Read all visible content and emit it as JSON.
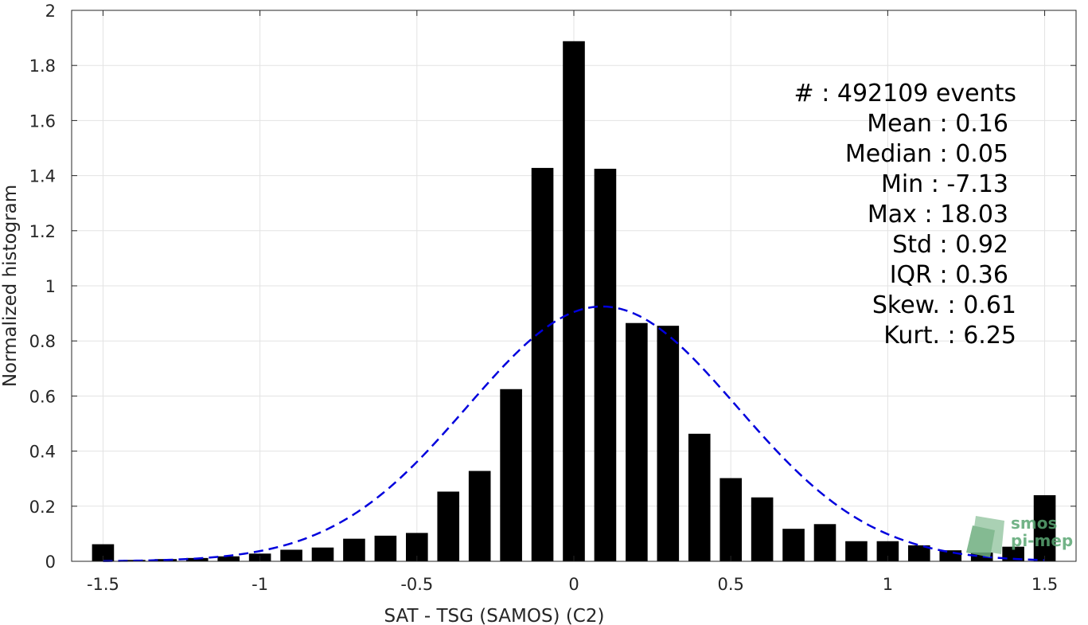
{
  "chart_data": {
    "type": "bar",
    "xlabel": "SAT - TSG (SAMOS) (C2)",
    "ylabel": "Normalized histogram",
    "xlim": [
      -1.6,
      1.6
    ],
    "ylim": [
      0,
      2
    ],
    "xticks": [
      "-1.5",
      "-1",
      "-0.5",
      "0",
      "0.5",
      "1",
      "1.5"
    ],
    "xtick_values": [
      -1.5,
      -1,
      -0.5,
      0,
      0.5,
      1,
      1.5
    ],
    "yticks": [
      "0",
      "0.2",
      "0.4",
      "0.6",
      "0.8",
      "1",
      "1.2",
      "1.4",
      "1.6",
      "1.8",
      "2"
    ],
    "ytick_values": [
      0,
      0.2,
      0.4,
      0.6,
      0.8,
      1,
      1.2,
      1.4,
      1.6,
      1.8,
      2
    ],
    "grid": true,
    "bar_color": "#000000",
    "bar_width": 0.07,
    "x": [
      -1.5,
      -1.4,
      -1.3,
      -1.2,
      -1.1,
      -1.0,
      -0.9,
      -0.8,
      -0.7,
      -0.6,
      -0.5,
      -0.4,
      -0.3,
      -0.2,
      -0.1,
      0.0,
      0.1,
      0.2,
      0.3,
      0.4,
      0.5,
      0.6,
      0.7,
      0.8,
      0.9,
      1.0,
      1.1,
      1.2,
      1.3,
      1.4,
      1.5
    ],
    "values": [
      0.062,
      0.005,
      0.008,
      0.012,
      0.018,
      0.028,
      0.042,
      0.05,
      0.082,
      0.093,
      0.103,
      0.253,
      0.328,
      0.625,
      1.428,
      1.888,
      1.425,
      0.865,
      0.855,
      0.463,
      0.302,
      0.232,
      0.118,
      0.135,
      0.073,
      0.073,
      0.058,
      0.04,
      0.032,
      0.053,
      0.24
    ],
    "fit_curve": {
      "type": "normal",
      "mean": 0.09,
      "std": 0.43,
      "peak": 0.925,
      "x_range": [
        -1.5,
        1.5
      ],
      "color": "#0000dd",
      "style": "dashed"
    },
    "annotations": [
      "#  : 492109 events",
      "Mean : 0.16",
      "Median : 0.05",
      "Min : -7.13",
      "Max : 18.03",
      "Std : 0.92",
      "IQR : 0.36",
      "Skew. : 0.61",
      "Kurt. : 6.25"
    ],
    "logo": {
      "line1": "smos",
      "line2": "pi-mep",
      "color": "#5aa673"
    }
  }
}
